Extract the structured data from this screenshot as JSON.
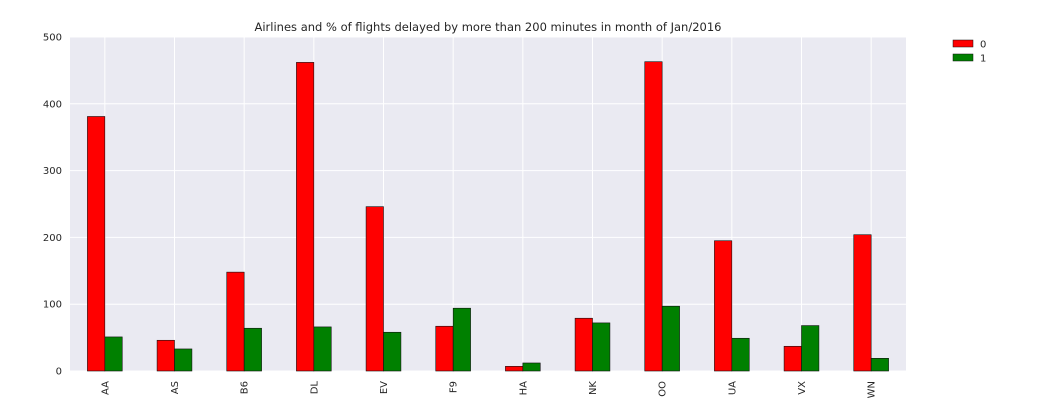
{
  "chart_data": {
    "type": "bar",
    "title": "Airlines and % of flights delayed by more than 200 minutes in month of Jan/2016",
    "xlabel": "",
    "ylabel": "",
    "categories": [
      "AA",
      "AS",
      "B6",
      "DL",
      "EV",
      "F9",
      "HA",
      "NK",
      "OO",
      "UA",
      "VX",
      "WN"
    ],
    "series": [
      {
        "name": "0",
        "color": "#ff0000",
        "values": [
          381,
          46,
          148,
          462,
          246,
          67,
          7,
          79,
          463,
          195,
          37,
          204
        ]
      },
      {
        "name": "1",
        "color": "#008000",
        "values": [
          51,
          33,
          64,
          66,
          58,
          94,
          12,
          72,
          97,
          49,
          68,
          19
        ]
      }
    ],
    "ylim": [
      0,
      500
    ],
    "yticks": [
      0,
      100,
      200,
      300,
      400,
      500
    ],
    "grid": true,
    "legend_position": "outside-top-right",
    "background_color": "#eaeaf2",
    "grid_color": "#ffffff"
  }
}
